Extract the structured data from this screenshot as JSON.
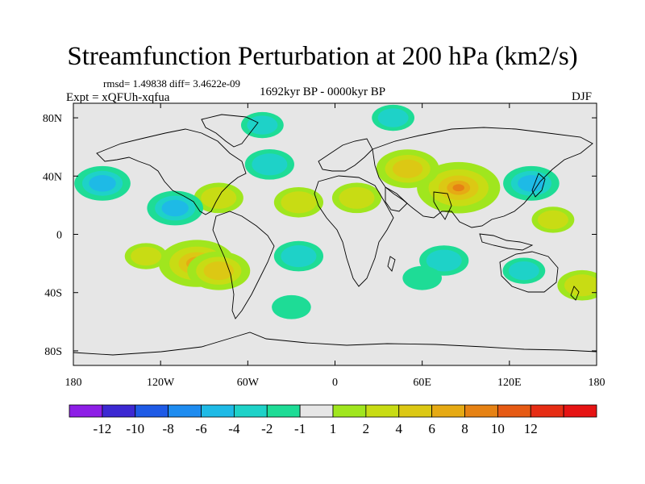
{
  "title": "Streamfunction Perturbation at 200 hPa (km2/s)",
  "stats": "rmsd= 1.49838 diff= 3.4622e-09",
  "experiment": "Expt = xQFUh-xqfua",
  "period": "1692kyr BP - 0000kyr BP",
  "season": "DJF",
  "map": {
    "projection": "cylindrical equidistant",
    "lon_range": [
      -180,
      180
    ],
    "lat_range": [
      -90,
      90
    ],
    "x_ticks": [
      {
        "lon": -180,
        "label": "180"
      },
      {
        "lon": -120,
        "label": "120W"
      },
      {
        "lon": -60,
        "label": "60W"
      },
      {
        "lon": 0,
        "label": "0"
      },
      {
        "lon": 60,
        "label": "60E"
      },
      {
        "lon": 120,
        "label": "120E"
      },
      {
        "lon": 180,
        "label": "180"
      }
    ],
    "y_ticks": [
      {
        "lat": 80,
        "label": "80N"
      },
      {
        "lat": 40,
        "label": "40N"
      },
      {
        "lat": 0,
        "label": "0"
      },
      {
        "lat": -40,
        "label": "40S"
      },
      {
        "lat": -80,
        "label": "80S"
      }
    ],
    "background_color": "#e6e6e6"
  },
  "colorbar": {
    "colors": [
      "#8d1ee6",
      "#3c28d2",
      "#1e5ae6",
      "#1e8cf0",
      "#1ebae6",
      "#1ed2c8",
      "#1edc96",
      "#e6e6e6",
      "#a0e61e",
      "#c8dc14",
      "#dcc814",
      "#e6aa14",
      "#e68214",
      "#e65a14",
      "#e62d14",
      "#e61414"
    ],
    "labels": [
      "-12",
      "-10",
      "-8",
      "-6",
      "-4",
      "-2",
      "-1",
      "1",
      "2",
      "4",
      "6",
      "8",
      "10",
      "12"
    ]
  },
  "chart_data": {
    "type": "heatmap",
    "variable": "Streamfunction perturbation at 200 hPa",
    "units": "km2/s",
    "levels": [
      -12,
      -10,
      -8,
      -6,
      -4,
      -2,
      -1,
      1,
      2,
      4,
      6,
      8,
      10,
      12
    ],
    "regions": [
      {
        "name": "tropical South Pacific high",
        "lon": -95,
        "lat": -20,
        "value": 7
      },
      {
        "name": "eastern South Pacific high",
        "lon": -80,
        "lat": -25,
        "value": 5
      },
      {
        "name": "South Pacific band",
        "lon": -130,
        "lat": -15,
        "value": 2
      },
      {
        "name": "South Atlantic low",
        "lon": -25,
        "lat": -15,
        "value": -3
      },
      {
        "name": "Indian Ocean low",
        "lon": 75,
        "lat": -18,
        "value": -3
      },
      {
        "name": "southern Indian band",
        "lon": 60,
        "lat": -30,
        "value": -1.5
      },
      {
        "name": "Tibetan high",
        "lon": 85,
        "lat": 32,
        "value": 8
      },
      {
        "name": "Middle East high",
        "lon": 50,
        "lat": 45,
        "value": 5
      },
      {
        "name": "Saharan high",
        "lon": 15,
        "lat": 25,
        "value": 3
      },
      {
        "name": "Gulf of Mexico high",
        "lon": -80,
        "lat": 25,
        "value": 3
      },
      {
        "name": "Atlantic ridge",
        "lon": -25,
        "lat": 22,
        "value": 3
      },
      {
        "name": "North Pacific low",
        "lon": -160,
        "lat": 35,
        "value": -4
      },
      {
        "name": "North America low",
        "lon": -110,
        "lat": 18,
        "value": -4
      },
      {
        "name": "North Atlantic low",
        "lon": -45,
        "lat": 48,
        "value": -3
      },
      {
        "name": "Greenland low",
        "lon": -50,
        "lat": 75,
        "value": -2
      },
      {
        "name": "Arctic Eurasia low",
        "lon": 40,
        "lat": 80,
        "value": -2
      },
      {
        "name": "Japan low",
        "lon": 135,
        "lat": 35,
        "value": -4
      },
      {
        "name": "western Pacific high",
        "lon": 150,
        "lat": 10,
        "value": 2
      },
      {
        "name": "Australia low",
        "lon": 130,
        "lat": -25,
        "value": -2
      },
      {
        "name": "New Zealand high",
        "lon": 170,
        "lat": -35,
        "value": 3
      },
      {
        "name": "Southern Ocean low",
        "lon": -30,
        "lat": -50,
        "value": -1.5
      }
    ]
  }
}
